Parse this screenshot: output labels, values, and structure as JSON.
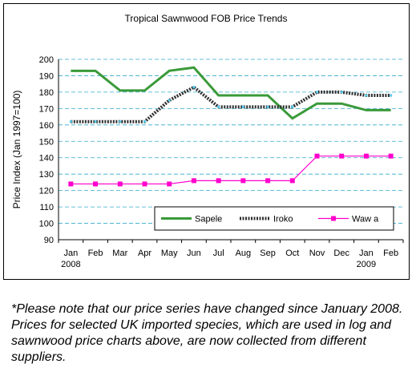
{
  "chart_data": {
    "type": "line",
    "title": "Tropical Sawnwood FOB Price Trends",
    "ylabel": "Price Index (Jan 1997=100)",
    "xlabel": "",
    "ylim": [
      90,
      200
    ],
    "yticks": [
      90,
      100,
      110,
      120,
      130,
      140,
      150,
      160,
      170,
      180,
      190,
      200
    ],
    "categories": [
      "Jan",
      "Feb",
      "Mar",
      "Apr",
      "May",
      "Jun",
      "Jul",
      "Aug",
      "Sep",
      "Oct",
      "Nov",
      "Dec",
      "Jan",
      "Feb"
    ],
    "year_labels": [
      {
        "index": 0,
        "text": "2008"
      },
      {
        "index": 12,
        "text": "2009"
      }
    ],
    "grid": true,
    "legend_position": "bottom-right inside plot",
    "series": [
      {
        "name": "Sapele",
        "color": "#3a9a3a",
        "marker": "none",
        "values": [
          193,
          193,
          181,
          181,
          193,
          195,
          178,
          178,
          178,
          164,
          173,
          173,
          169,
          169
        ]
      },
      {
        "name": "Iroko",
        "color": "#303030",
        "marker": "square-small",
        "values": [
          162,
          162,
          162,
          162,
          175,
          183,
          171,
          171,
          171,
          171,
          180,
          180,
          178,
          178
        ]
      },
      {
        "name": "Wawa",
        "legend_label": "Waw a",
        "color": "#ff00cc",
        "marker": "square",
        "values": [
          124,
          124,
          124,
          124,
          124,
          126,
          126,
          126,
          126,
          126,
          141,
          141,
          141,
          141
        ]
      }
    ]
  },
  "footnote": "*Please note that our price series have changed since January 2008. Prices for selected UK imported species, which are used in log and sawnwood price charts above, are now collected from different suppliers."
}
